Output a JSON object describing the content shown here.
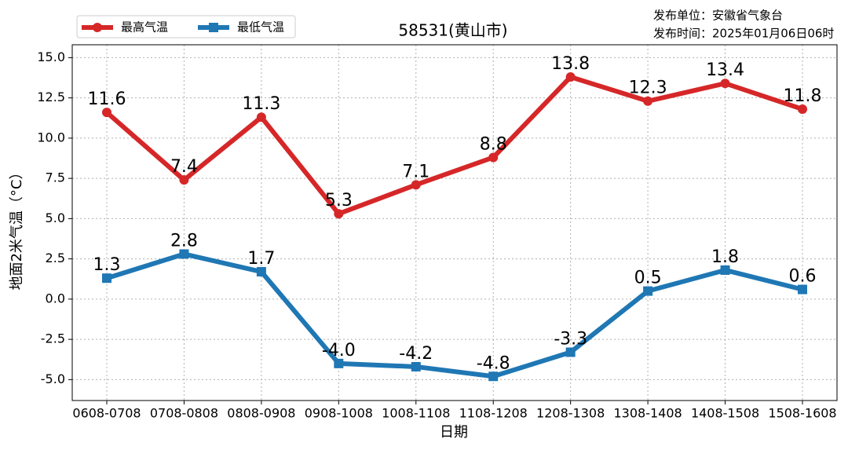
{
  "chart_data": {
    "type": "line",
    "title": "58531(黄山市)",
    "publisher": "发布单位：安徽省气象台",
    "publish_time": "发布时间：2025年01月06日06时",
    "x_label": "日期",
    "y_label": "地面2米气温（°C）",
    "categories": [
      "0608-0708",
      "0708-0808",
      "0808-0908",
      "0908-1008",
      "1008-1108",
      "1108-1208",
      "1208-1308",
      "1308-1408",
      "1408-1508",
      "1508-1608"
    ],
    "series": [
      {
        "name": "最高气温",
        "color": "#d62728",
        "marker": "circle",
        "values": [
          11.6,
          7.4,
          11.3,
          5.3,
          7.1,
          8.8,
          13.8,
          12.3,
          13.4,
          11.8
        ],
        "value_labels": [
          "11.6",
          "7.4",
          "11.3",
          "5.3",
          "7.1",
          "8.8",
          "13.8",
          "12.3",
          "13.4",
          "11.8"
        ]
      },
      {
        "name": "最低气温",
        "color": "#1f77b4",
        "marker": "square",
        "values": [
          1.3,
          2.8,
          1.7,
          -4.0,
          -4.2,
          -4.8,
          -3.3,
          0.5,
          1.8,
          0.6
        ],
        "value_labels": [
          "1.3",
          "2.8",
          "1.7",
          "-4.0",
          "-4.2",
          "-4.8",
          "-3.3",
          "0.5",
          "1.8",
          "0.6"
        ]
      }
    ],
    "ylim": [
      -6.3,
      15.8
    ],
    "yticks": [
      {
        "value": -5,
        "label": "-5.0"
      },
      -2.5,
      {
        "value": 0,
        "label": "0.0"
      },
      2.5,
      {
        "value": 5,
        "label": "5.0"
      },
      7.5,
      {
        "value": 10,
        "label": "10.0"
      },
      12.5,
      {
        "value": 15,
        "label": "15.0"
      }
    ],
    "grid": true,
    "legend": "upper left"
  }
}
